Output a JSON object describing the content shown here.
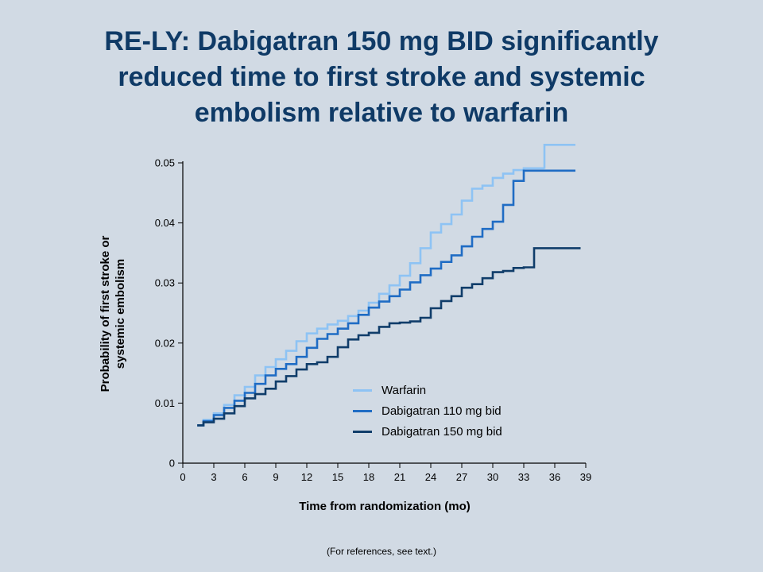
{
  "title_lines": [
    "RE-LY: Dabigatran 150 mg BID significantly",
    "reduced time to first stroke and systemic",
    "embolism relative to warfarin"
  ],
  "footnote": "(For references, see text.)",
  "colors": {
    "background": "#d1dae4",
    "title": "#0f3a66"
  },
  "chart_data": {
    "type": "line",
    "title": "RE-LY: Dabigatran 150 mg BID significantly reduced time to first stroke and systemic embolism relative to warfarin",
    "xlabel": "Time from randomization (mo)",
    "ylabel_lines": [
      "Probability of first stroke or",
      "systemic embolism"
    ],
    "xlim": [
      0,
      39
    ],
    "ylim": [
      0,
      0.05
    ],
    "xticks": [
      0,
      3,
      6,
      9,
      12,
      15,
      18,
      21,
      24,
      27,
      30,
      33,
      36,
      39
    ],
    "yticks": [
      "0",
      "0.01",
      "0.02",
      "0.03",
      "0.04",
      "0.05"
    ],
    "grid": false,
    "legend_position": "lower-right",
    "series": [
      {
        "name": "Warfarin",
        "color": "#8ec3f4",
        "x": [
          1.4,
          2,
          3,
          4,
          5,
          6,
          7,
          8,
          9,
          10,
          11,
          12,
          13,
          14,
          15,
          16,
          17,
          18,
          19,
          20,
          21,
          22,
          23,
          24,
          25,
          26,
          27,
          28,
          29,
          30,
          31,
          32,
          33,
          34,
          35,
          35,
          38
        ],
        "y": [
          0.0063,
          0.0072,
          0.0083,
          0.0097,
          0.0113,
          0.0127,
          0.0146,
          0.016,
          0.0173,
          0.0187,
          0.0203,
          0.0216,
          0.0224,
          0.0231,
          0.0237,
          0.0245,
          0.0254,
          0.0267,
          0.0282,
          0.0296,
          0.0312,
          0.0333,
          0.0358,
          0.0384,
          0.0398,
          0.0414,
          0.0437,
          0.0457,
          0.0462,
          0.0475,
          0.0482,
          0.0488,
          0.0491,
          0.0491,
          0.049,
          0.053,
          0.053
        ]
      },
      {
        "name": "Dabigatran 110 mg bid",
        "color": "#1f6cc4",
        "x": [
          1.4,
          2,
          3,
          4,
          5,
          6,
          7,
          8,
          9,
          10,
          11,
          12,
          13,
          14,
          15,
          16,
          17,
          18,
          19,
          20,
          21,
          22,
          23,
          24,
          25,
          26,
          27,
          28,
          29,
          30,
          31,
          32,
          33,
          34,
          35,
          38
        ],
        "y": [
          0.0063,
          0.007,
          0.008,
          0.0092,
          0.0104,
          0.0117,
          0.0132,
          0.0146,
          0.0157,
          0.0165,
          0.0177,
          0.0192,
          0.0207,
          0.0215,
          0.0224,
          0.0233,
          0.0247,
          0.0259,
          0.0269,
          0.0278,
          0.0289,
          0.0301,
          0.0313,
          0.0324,
          0.0335,
          0.0346,
          0.0361,
          0.0377,
          0.039,
          0.0402,
          0.043,
          0.047,
          0.0487,
          0.0487,
          0.0487,
          0.0487
        ]
      },
      {
        "name": "Dabigatran 150 mg bid",
        "color": "#103d6a",
        "x": [
          1.4,
          2,
          3,
          4,
          5,
          6,
          7,
          8,
          9,
          10,
          11,
          12,
          13,
          14,
          15,
          16,
          17,
          18,
          19,
          20,
          21,
          22,
          23,
          24,
          25,
          26,
          27,
          28,
          29,
          30,
          31,
          32,
          33,
          33.5,
          34,
          38.5
        ],
        "y": [
          0.0063,
          0.0068,
          0.0074,
          0.0083,
          0.0095,
          0.0108,
          0.0115,
          0.0124,
          0.0136,
          0.0145,
          0.0156,
          0.0165,
          0.0168,
          0.0177,
          0.0193,
          0.0206,
          0.0213,
          0.0217,
          0.0227,
          0.0233,
          0.0234,
          0.0236,
          0.0242,
          0.0258,
          0.027,
          0.0278,
          0.0292,
          0.0298,
          0.0308,
          0.0318,
          0.032,
          0.0325,
          0.0326,
          0.0326,
          0.0358,
          0.0358
        ]
      }
    ]
  }
}
